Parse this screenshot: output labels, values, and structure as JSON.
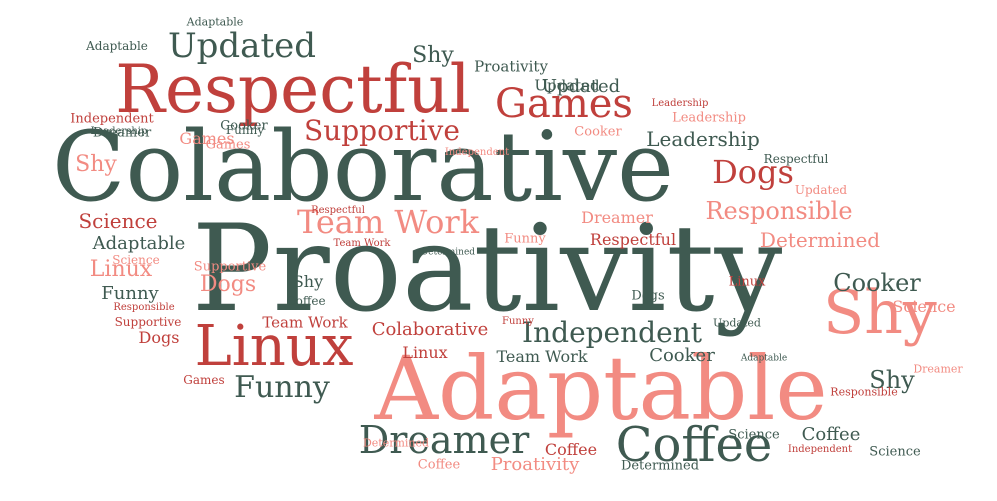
{
  "palette": {
    "dark_green": "#3f5a51",
    "red": "#c0403c",
    "salmon": "#f28b82"
  },
  "words": [
    {
      "text": "Proativity",
      "color": "dark_green"
    },
    {
      "text": "Colaborative",
      "color": "dark_green"
    },
    {
      "text": "Respectful",
      "color": "red"
    },
    {
      "text": "Adaptable",
      "color": "salmon"
    },
    {
      "text": "Shy",
      "color": "salmon"
    },
    {
      "text": "Linux",
      "color": "red"
    },
    {
      "text": "Coffee",
      "color": "dark_green"
    },
    {
      "text": "Games",
      "color": "red"
    },
    {
      "text": "Updated",
      "color": "dark_green"
    },
    {
      "text": "Dreamer",
      "color": "dark_green"
    },
    {
      "text": "Team Work",
      "color": "salmon"
    },
    {
      "text": "Dogs",
      "color": "red"
    },
    {
      "text": "Supportive",
      "color": "red"
    },
    {
      "text": "Independent",
      "color": "dark_green"
    },
    {
      "text": "Funny",
      "color": "dark_green"
    },
    {
      "text": "Shy",
      "color": "dark_green"
    },
    {
      "text": "Responsible",
      "color": "salmon"
    },
    {
      "text": "Cooker",
      "color": "dark_green"
    },
    {
      "text": "Leadership",
      "color": "dark_green"
    },
    {
      "text": "Science",
      "color": "red"
    },
    {
      "text": "Determined",
      "color": "salmon"
    },
    {
      "text": "Shy",
      "color": "dark_green"
    },
    {
      "text": "Linux",
      "color": "salmon"
    },
    {
      "text": "Dogs",
      "color": "salmon"
    },
    {
      "text": "Games",
      "color": "salmon"
    },
    {
      "text": "Colaborative",
      "color": "red"
    },
    {
      "text": "Proativity",
      "color": "salmon"
    },
    {
      "text": "Coffee",
      "color": "dark_green"
    },
    {
      "text": "Updated",
      "color": "dark_green"
    },
    {
      "text": "Shy",
      "color": "salmon"
    },
    {
      "text": "Adaptable",
      "color": "dark_green"
    },
    {
      "text": "Funny",
      "color": "dark_green"
    },
    {
      "text": "Respectful",
      "color": "red"
    },
    {
      "text": "Dreamer",
      "color": "salmon"
    },
    {
      "text": "Cooker",
      "color": "dark_green"
    },
    {
      "text": "Team Work",
      "color": "dark_green"
    },
    {
      "text": "Supportive",
      "color": "salmon"
    },
    {
      "text": "Science",
      "color": "salmon"
    },
    {
      "text": "Linux",
      "color": "red"
    },
    {
      "text": "Leadership",
      "color": "salmon"
    },
    {
      "text": "Proativity",
      "color": "dark_green"
    },
    {
      "text": "Updated",
      "color": "dark_green"
    },
    {
      "text": "Adaptable",
      "color": "dark_green"
    },
    {
      "text": "Independent",
      "color": "red"
    },
    {
      "text": "Games",
      "color": "salmon"
    },
    {
      "text": "Funny",
      "color": "salmon"
    },
    {
      "text": "Coffee",
      "color": "red"
    },
    {
      "text": "Coffee",
      "color": "salmon"
    },
    {
      "text": "Dogs",
      "color": "red"
    },
    {
      "text": "Science",
      "color": "dark_green"
    },
    {
      "text": "Cooker",
      "color": "salmon"
    },
    {
      "text": "Cooker",
      "color": "dark_green"
    },
    {
      "text": "Funny",
      "color": "dark_green"
    },
    {
      "text": "Leadership",
      "color": "dark_green"
    },
    {
      "text": "Adaptable",
      "color": "dark_green"
    },
    {
      "text": "Dreamer",
      "color": "dark_green"
    },
    {
      "text": "Shy",
      "color": "dark_green"
    },
    {
      "text": "Science",
      "color": "salmon"
    },
    {
      "text": "Determined",
      "color": "dark_green"
    },
    {
      "text": "Respectful",
      "color": "dark_green"
    },
    {
      "text": "Updated",
      "color": "salmon"
    },
    {
      "text": "Responsible",
      "color": "red"
    },
    {
      "text": "Supportive",
      "color": "red"
    },
    {
      "text": "Games",
      "color": "red"
    },
    {
      "text": "Dogs",
      "color": "dark_green"
    },
    {
      "text": "Linux",
      "color": "red"
    },
    {
      "text": "Team Work",
      "color": "red"
    },
    {
      "text": "Dreamer",
      "color": "salmon"
    },
    {
      "text": "Independent",
      "color": "red"
    },
    {
      "text": "Respectful",
      "color": "red"
    },
    {
      "text": "Leadership",
      "color": "red"
    },
    {
      "text": "Determined",
      "color": "salmon"
    },
    {
      "text": "Updated",
      "color": "dark_green"
    },
    {
      "text": "Independent",
      "color": "salmon"
    },
    {
      "text": "Adaptable",
      "color": "dark_green"
    },
    {
      "text": "Funny",
      "color": "red"
    },
    {
      "text": "Team Work",
      "color": "red"
    },
    {
      "text": "Coffee",
      "color": "dark_green"
    },
    {
      "text": "Determined",
      "color": "dark_green"
    },
    {
      "text": "Science",
      "color": "dark_green"
    },
    {
      "text": "Responsible",
      "color": "red"
    }
  ]
}
